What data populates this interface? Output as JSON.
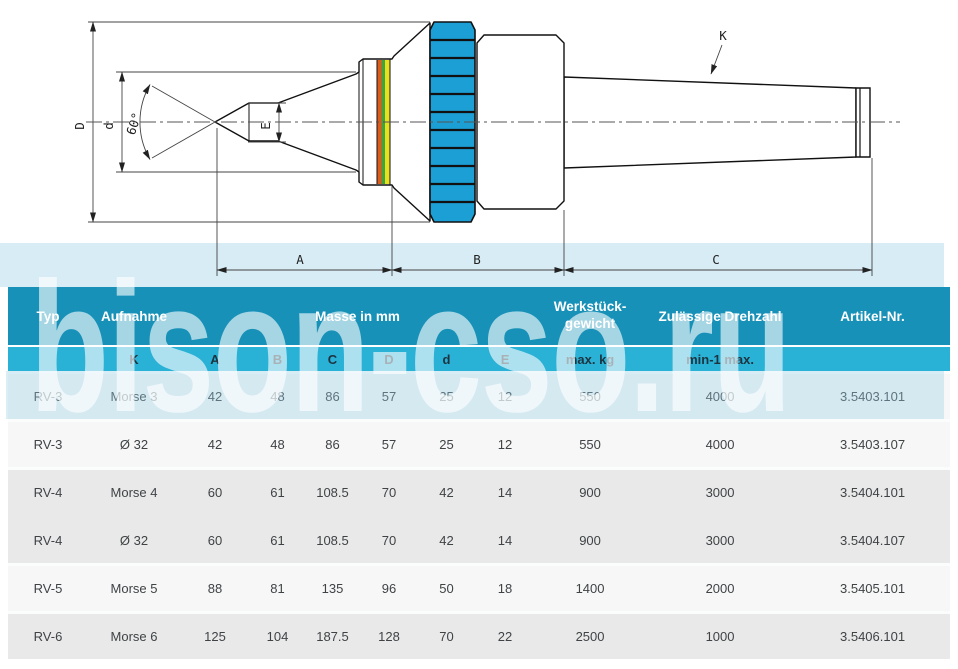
{
  "watermark": {
    "text": "bison-cso.ru"
  },
  "drawing": {
    "labels": {
      "D": "D",
      "d": "d",
      "angle": "60°",
      "E": "E",
      "A": "A",
      "B": "B",
      "C": "C",
      "K": "K"
    },
    "colors": {
      "knurl_blue": "#1b9fd4",
      "stripe_orange": "#e05a1e",
      "stripe_green": "#3fa33f",
      "stripe_yellow": "#e6e01e",
      "outline": "#111111"
    }
  },
  "table": {
    "colors": {
      "header_teal": "#1791b8",
      "subheader_cyan": "#2ab1d6",
      "row_white": "#f7f7f7",
      "row_gray": "#e9e9e9",
      "row_tint": "#d7ecf5"
    },
    "header": {
      "typ": "Typ",
      "aufnahme": "Aufnahme",
      "masse": "Masse in mm",
      "werkstueck_line1": "Werkstück-",
      "werkstueck_line2": "gewicht",
      "drehzahl": "Zulässige Drehzahl",
      "artikel": "Artikel-Nr."
    },
    "subheader": {
      "k": "K",
      "a": "A",
      "b": "B",
      "c": "C",
      "d": "D",
      "d2": "d",
      "e": "E",
      "max_kg": "max. kg",
      "min_max": "min-1 max."
    },
    "rows": [
      {
        "typ": "RV-3",
        "aufnahme": "Morse 3",
        "a": "42",
        "b": "48",
        "c": "86",
        "d": "57",
        "d2": "25",
        "e": "12",
        "gewicht": "550",
        "drehzahl": "4000",
        "artikel": "3.5403.101"
      },
      {
        "typ": "RV-3",
        "aufnahme": "Ø 32",
        "a": "42",
        "b": "48",
        "c": "86",
        "d": "57",
        "d2": "25",
        "e": "12",
        "gewicht": "550",
        "drehzahl": "4000",
        "artikel": "3.5403.107"
      },
      {
        "typ": "RV-4",
        "aufnahme": "Morse 4",
        "a": "60",
        "b": "61",
        "c": "108.5",
        "d": "70",
        "d2": "42",
        "e": "14",
        "gewicht": "900",
        "drehzahl": "3000",
        "artikel": "3.5404.101"
      },
      {
        "typ": "RV-4",
        "aufnahme": "Ø 32",
        "a": "60",
        "b": "61",
        "c": "108.5",
        "d": "70",
        "d2": "42",
        "e": "14",
        "gewicht": "900",
        "drehzahl": "3000",
        "artikel": "3.5404.107"
      },
      {
        "typ": "RV-5",
        "aufnahme": "Morse 5",
        "a": "88",
        "b": "81",
        "c": "135",
        "d": "96",
        "d2": "50",
        "e": "18",
        "gewicht": "1400",
        "drehzahl": "2000",
        "artikel": "3.5405.101"
      },
      {
        "typ": "RV-6",
        "aufnahme": "Morse 6",
        "a": "125",
        "b": "104",
        "c": "187.5",
        "d": "128",
        "d2": "70",
        "e": "22",
        "gewicht": "2500",
        "drehzahl": "1000",
        "artikel": "3.5406.101"
      }
    ]
  }
}
